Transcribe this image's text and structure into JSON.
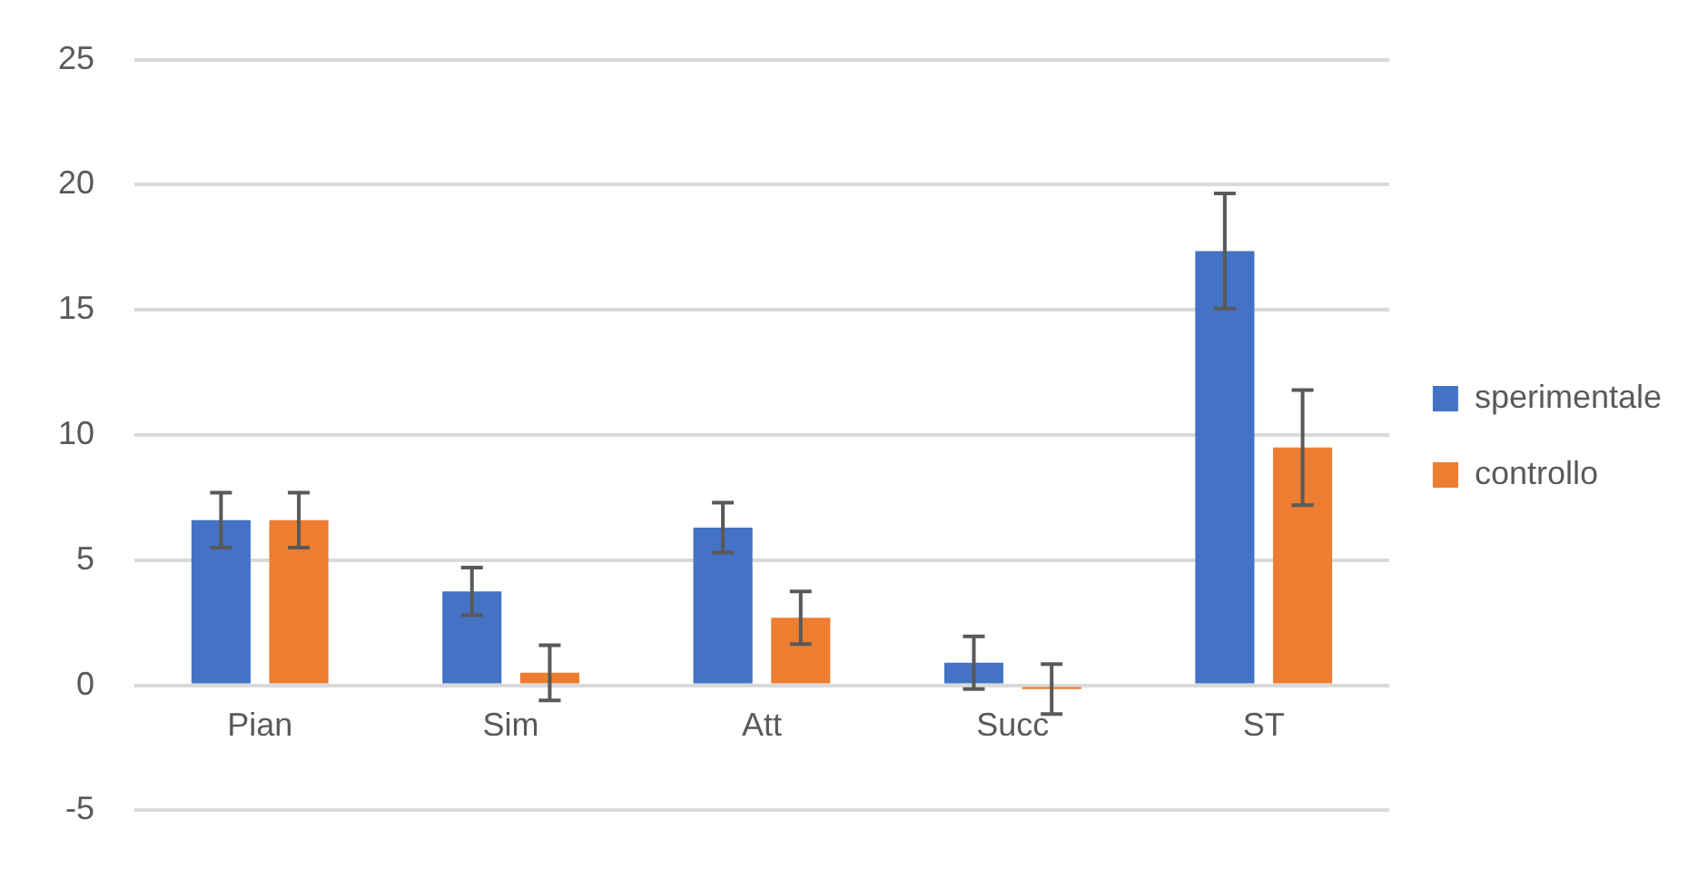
{
  "chart_data": {
    "type": "bar",
    "categories": [
      "Pian",
      "Sim",
      "Att",
      "Succ",
      "ST"
    ],
    "series": [
      {
        "name": "sperimentale",
        "color": "#4472c4",
        "values": [
          6.6,
          3.75,
          6.3,
          0.9,
          17.35
        ],
        "errors": [
          1.1,
          0.95,
          1.0,
          1.05,
          2.3
        ]
      },
      {
        "name": "controllo",
        "color": "#ed7d31",
        "values": [
          6.6,
          0.5,
          2.7,
          -0.15,
          9.5
        ],
        "errors": [
          1.1,
          1.1,
          1.05,
          1.0,
          2.3
        ]
      }
    ],
    "ylim": [
      -5,
      25
    ],
    "yticks": [
      -5,
      0,
      5,
      10,
      15,
      20,
      25
    ],
    "grid": "y",
    "legend": "right"
  }
}
